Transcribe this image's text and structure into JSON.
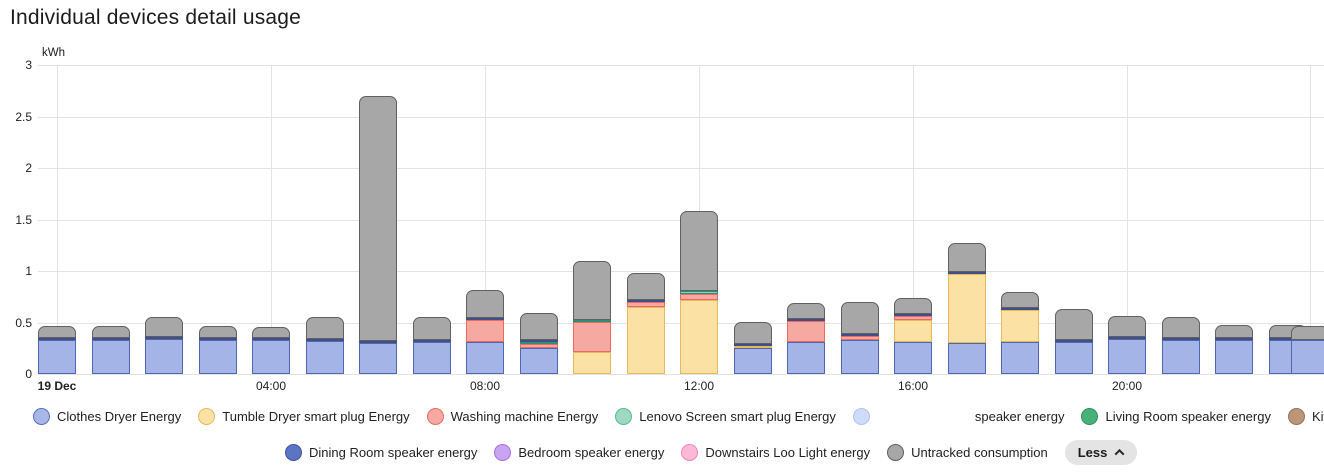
{
  "title": "Individual devices detail usage",
  "axis": {
    "unit": "kWh",
    "y_ticks": [
      {
        "label": "3",
        "value": 3
      },
      {
        "label": "2.5",
        "value": 2.5
      },
      {
        "label": "2",
        "value": 2
      },
      {
        "label": "1.5",
        "value": 1.5
      },
      {
        "label": "1",
        "value": 1
      },
      {
        "label": "0.5",
        "value": 0.5
      },
      {
        "label": "0",
        "value": 0
      }
    ],
    "x_ticks": [
      {
        "label": "19 Dec",
        "slot": 0,
        "bold": true
      },
      {
        "label": "04:00",
        "slot": 4,
        "bold": false
      },
      {
        "label": "08:00",
        "slot": 8,
        "bold": false
      },
      {
        "label": "12:00",
        "slot": 12,
        "bold": false
      },
      {
        "label": "16:00",
        "slot": 16,
        "bold": false
      },
      {
        "label": "20:00",
        "slot": 20,
        "bold": false
      },
      {
        "label": "",
        "slot": 24,
        "bold": false
      }
    ]
  },
  "chart_data": {
    "type": "bar",
    "stacked": true,
    "title": "Individual devices detail usage",
    "ylabel": "kWh",
    "ylim": [
      0,
      3
    ],
    "grid": true,
    "x": [
      "00:00",
      "01:00",
      "02:00",
      "03:00",
      "04:00",
      "05:00",
      "06:00",
      "07:00",
      "08:00",
      "09:00",
      "10:00",
      "11:00",
      "12:00",
      "13:00",
      "14:00",
      "15:00",
      "16:00",
      "17:00",
      "18:00",
      "19:00",
      "20:00",
      "21:00",
      "22:00",
      "23:00",
      "00:00 (20 Dec, clipped)"
    ],
    "series": [
      {
        "name": "Clothes Dryer Energy",
        "fill": "#a4b4e6",
        "border": "#4d68b1",
        "values": [
          0.33,
          0.33,
          0.34,
          0.33,
          0.33,
          0.32,
          0.3,
          0.31,
          0.31,
          0.25,
          0,
          0,
          0,
          0.25,
          0.31,
          0.33,
          0.31,
          0.3,
          0.31,
          0.31,
          0.34,
          0.33,
          0.33,
          0.33,
          0.33
        ]
      },
      {
        "name": "Tumble Dryer smart plug Energy",
        "fill": "#fbe2a4",
        "border": "#e5b95c",
        "values": [
          0,
          0,
          0,
          0,
          0,
          0,
          0,
          0,
          0,
          0,
          0.21,
          0.65,
          0.72,
          0.02,
          0,
          0,
          0.21,
          0.67,
          0.31,
          0,
          0,
          0,
          0,
          0,
          0
        ]
      },
      {
        "name": "Washing machine Energy",
        "fill": "#f6a9a1",
        "border": "#e96a61",
        "values": [
          0,
          0,
          0,
          0,
          0,
          0,
          0,
          0,
          0.21,
          0.04,
          0.29,
          0.05,
          0.06,
          0,
          0.2,
          0.04,
          0.04,
          0,
          0,
          0,
          0,
          0,
          0,
          0,
          0
        ]
      },
      {
        "name": "Lenovo Screen smart plug Energy",
        "fill": "#8fcfb8",
        "border": "#2e8f74",
        "values": [
          0,
          0,
          0,
          0,
          0,
          0,
          0,
          0,
          0,
          0.02,
          0.02,
          0,
          0.03,
          0,
          0,
          0,
          0,
          0,
          0,
          0,
          0,
          0,
          0,
          0,
          0
        ]
      },
      {
        "name": "Dining Room speaker energy",
        "fill": "#55639e",
        "border": "#404f88",
        "values": [
          0.02,
          0.02,
          0.02,
          0.02,
          0.02,
          0.02,
          0.02,
          0.02,
          0.02,
          0.02,
          0,
          0.02,
          0,
          0.01,
          0.02,
          0.02,
          0.02,
          0.02,
          0.02,
          0.02,
          0.01,
          0.02,
          0.01,
          0.01,
          0
        ]
      },
      {
        "name": "Untracked consumption",
        "fill": "#a7a7a7",
        "border": "#606060",
        "values": [
          0.12,
          0.12,
          0.19,
          0.12,
          0.11,
          0.21,
          2.38,
          0.22,
          0.27,
          0.26,
          0.57,
          0.26,
          0.78,
          0.21,
          0.16,
          0.31,
          0.16,
          0.28,
          0.16,
          0.3,
          0.2,
          0.2,
          0.13,
          0.13,
          0.14
        ]
      }
    ]
  },
  "legend": {
    "row1": [
      {
        "label": "Clothes Dryer Energy",
        "dot": {
          "fill": "#a9b7e8",
          "border": "#5470c6"
        }
      },
      {
        "label": "Tumble Dryer smart plug Energy",
        "dot": {
          "fill": "#fbe2a4",
          "border": "#e5b95c"
        }
      },
      {
        "label": "Washing machine Energy",
        "dot": {
          "fill": "#f6a9a1",
          "border": "#e96a61"
        }
      },
      {
        "label": "Lenovo Screen smart plug Energy",
        "dot": {
          "fill": "#9ed8c0",
          "border": "#5cb694"
        }
      },
      {
        "label": "",
        "dot": {
          "fill": "#cfdcf8",
          "border": "#aec4f0"
        }
      },
      {
        "label": "speaker energy",
        "dot": null,
        "spacer_before": 88
      },
      {
        "label": "Living Room speaker energy",
        "dot": {
          "fill": "#49b27b",
          "border": "#2e9160"
        }
      },
      {
        "label": "Kitchen speaker energy",
        "dot": {
          "fill": "#bb9679",
          "border": "#96715a"
        }
      }
    ],
    "row2": [
      {
        "label": "Dining Room speaker energy",
        "dot": {
          "fill": "#5b74c4",
          "border": "#3f54a0"
        }
      },
      {
        "label": "Bedroom speaker energy",
        "dot": {
          "fill": "#c8a4f2",
          "border": "#a76fe3"
        }
      },
      {
        "label": "Downstairs Loo Light energy",
        "dot": {
          "fill": "#fab9d5",
          "border": "#f383ba"
        }
      },
      {
        "label": "Untracked consumption",
        "dot": {
          "fill": "#a7a7a7",
          "border": "#606060"
        }
      }
    ]
  },
  "less_button": {
    "label": "Less"
  }
}
